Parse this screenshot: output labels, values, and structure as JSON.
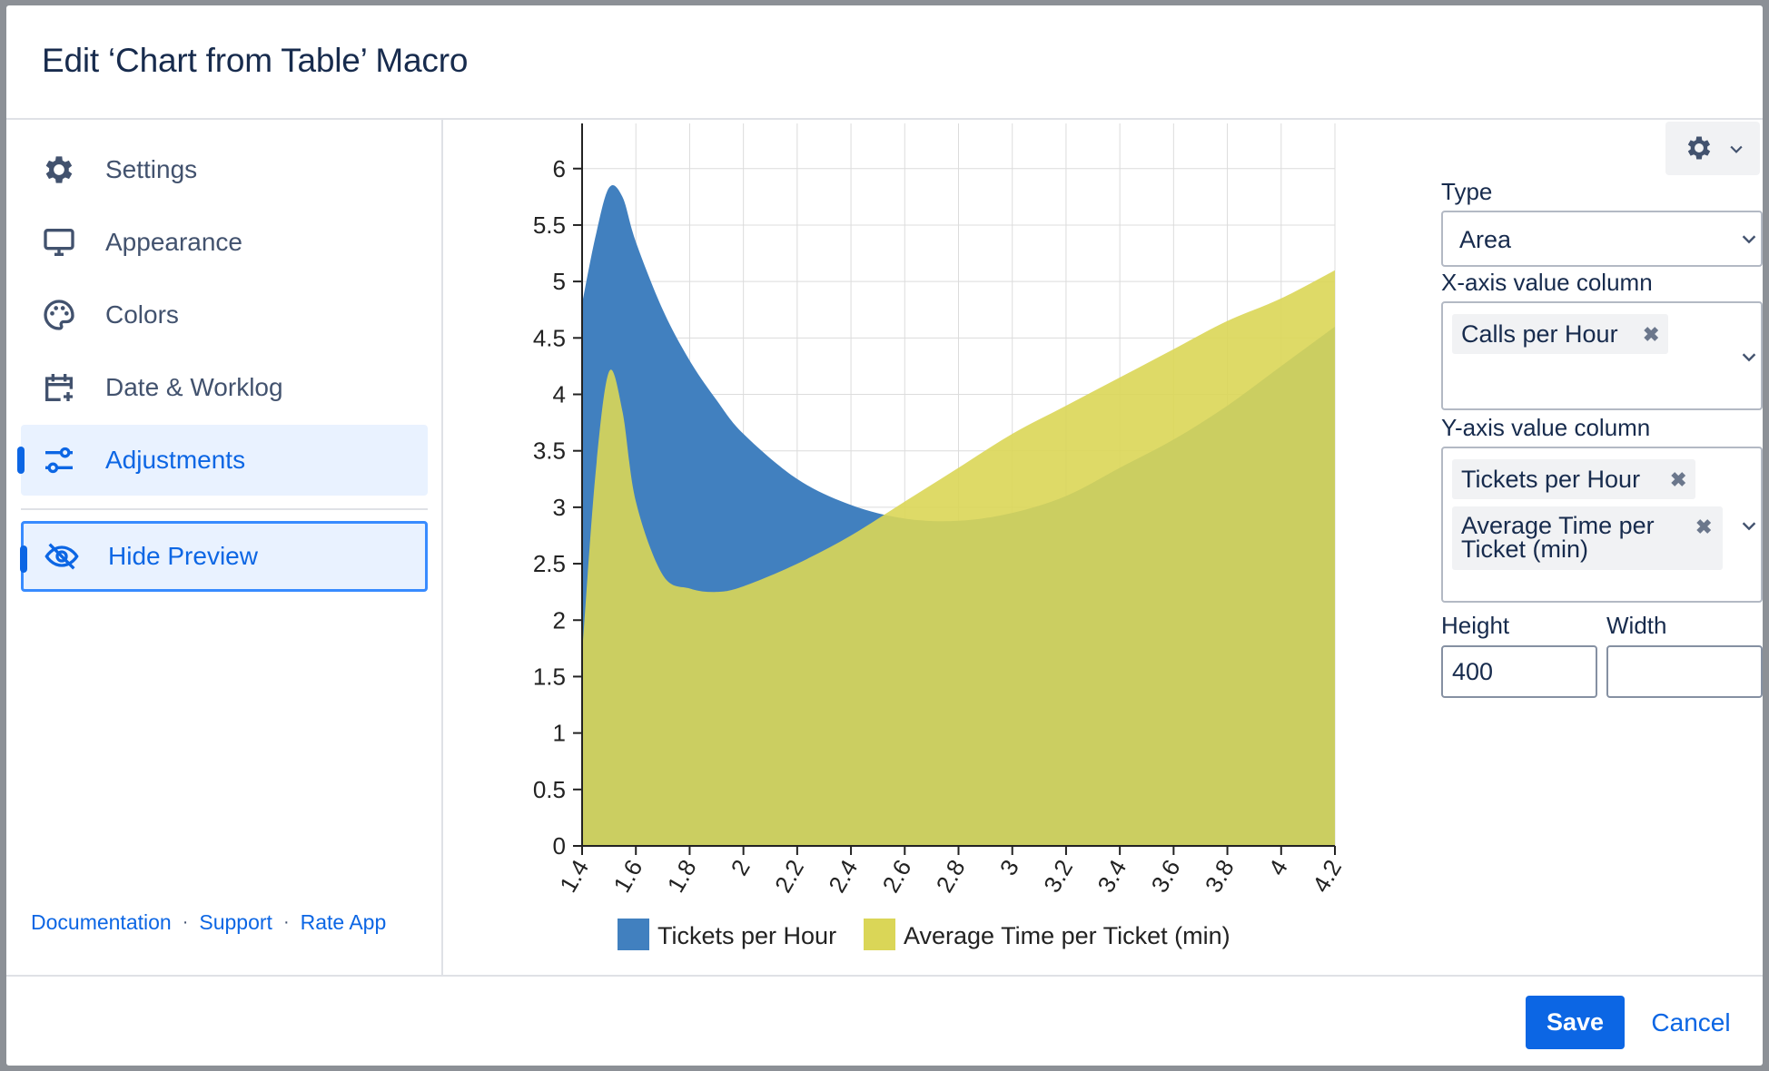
{
  "dialog": {
    "title": "Edit ‘Chart from Table’ Macro",
    "save_label": "Save",
    "cancel_label": "Cancel"
  },
  "sidebar": {
    "items": [
      {
        "label": "Settings",
        "icon": "gear-icon"
      },
      {
        "label": "Appearance",
        "icon": "monitor-icon"
      },
      {
        "label": "Colors",
        "icon": "palette-icon"
      },
      {
        "label": "Date & Worklog",
        "icon": "calendar-plus-icon"
      },
      {
        "label": "Adjustments",
        "icon": "sliders-icon",
        "active": true
      }
    ],
    "hide_preview_label": "Hide Preview",
    "links": [
      "Documentation",
      "Support",
      "Rate App"
    ]
  },
  "config": {
    "type_label": "Type",
    "type_value": "Area",
    "x_label": "X-axis value column",
    "x_tags": [
      "Calls per Hour"
    ],
    "y_label": "Y-axis value column",
    "y_tags": [
      "Tickets per Hour",
      "Average Time per Ticket (min)"
    ],
    "y_tag_lines": [
      "Average Time per",
      "Ticket (min)"
    ],
    "height_label": "Height",
    "height_value": "400",
    "width_label": "Width",
    "width_value": ""
  },
  "colors": {
    "accent": "#0c66e4",
    "series1": "#4180bf",
    "series2": "#dad657"
  },
  "chart_data": {
    "type": "area",
    "x": [
      1.4,
      1.45,
      1.5,
      1.55,
      1.6,
      1.7,
      1.8,
      1.9,
      2.0,
      2.2,
      2.4,
      2.6,
      2.8,
      3.0,
      3.2,
      3.4,
      3.6,
      3.8,
      4.0,
      4.2
    ],
    "xlim": [
      1.4,
      4.2
    ],
    "ylim": [
      0,
      6.4
    ],
    "x_ticks": [
      "1.4",
      "1.6",
      "1.8",
      "2",
      "2.2",
      "2.4",
      "2.6",
      "2.8",
      "3",
      "3.2",
      "3.4",
      "3.6",
      "3.8",
      "4",
      "4.2"
    ],
    "y_ticks": [
      "0",
      "0.5",
      "1",
      "1.5",
      "2",
      "2.5",
      "3",
      "3.5",
      "4",
      "4.5",
      "5",
      "5.5",
      "6"
    ],
    "grid": true,
    "legend_position": "bottom",
    "series": [
      {
        "name": "Tickets per Hour",
        "values": [
          4.8,
          5.4,
          5.83,
          5.75,
          5.35,
          4.75,
          4.3,
          3.95,
          3.65,
          3.25,
          3.02,
          2.9,
          2.88,
          2.95,
          3.1,
          3.35,
          3.6,
          3.9,
          4.25,
          4.6
        ]
      },
      {
        "name": "Average Time per Ticket (min)",
        "values": [
          1.7,
          3.3,
          4.2,
          3.85,
          3.05,
          2.4,
          2.28,
          2.25,
          2.3,
          2.5,
          2.75,
          3.05,
          3.35,
          3.65,
          3.9,
          4.15,
          4.4,
          4.65,
          4.85,
          5.1
        ]
      }
    ]
  }
}
